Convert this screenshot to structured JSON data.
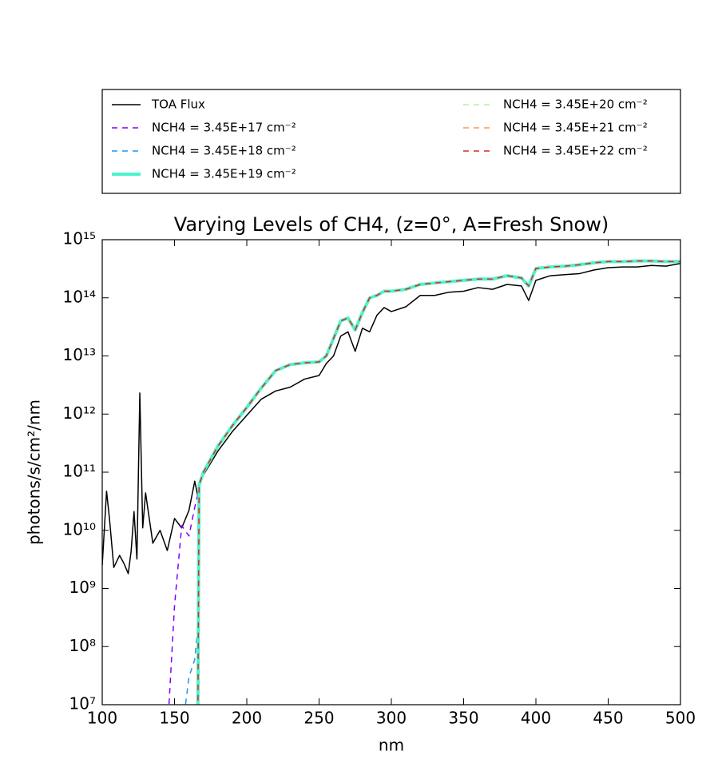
{
  "chart_data": {
    "type": "line",
    "title": "Varying Levels of CH4, (z=0°, A=Fresh Snow)",
    "xlabel": "nm",
    "ylabel": "photons/s/cm²/nm",
    "log_y": true,
    "grid": false,
    "legend": "above",
    "xlim": [
      100,
      500
    ],
    "xticks": [
      100,
      150,
      200,
      250,
      300,
      350,
      400,
      450,
      500
    ],
    "ylim": [
      10000000.0,
      1000000000000000.0
    ],
    "yticks": [
      {
        "value": 10000000.0,
        "label": "10⁷"
      },
      {
        "value": 100000000.0,
        "label": "10⁸"
      },
      {
        "value": 1000000000.0,
        "label": "10⁹"
      },
      {
        "value": 10000000000.0,
        "label": "10¹⁰"
      },
      {
        "value": 100000000000.0,
        "label": "10¹¹"
      },
      {
        "value": 1000000000000.0,
        "label": "10¹²"
      },
      {
        "value": 10000000000000.0,
        "label": "10¹³"
      },
      {
        "value": 100000000000000.0,
        "label": "10¹⁴"
      },
      {
        "value": 1000000000000000.0,
        "label": "10¹⁵"
      }
    ],
    "x": [
      100,
      103,
      105,
      108,
      112,
      115,
      118,
      120,
      122,
      124,
      126,
      128,
      130,
      135,
      140,
      145,
      150,
      155,
      160,
      164,
      166,
      167,
      170,
      180,
      190,
      200,
      210,
      220,
      230,
      240,
      250,
      255,
      260,
      265,
      270,
      275,
      280,
      285,
      290,
      295,
      300,
      310,
      320,
      330,
      340,
      350,
      360,
      370,
      380,
      390,
      395,
      400,
      410,
      420,
      430,
      440,
      450,
      460,
      470,
      480,
      490,
      500
    ],
    "series": [
      {
        "name": "TOA Flux",
        "color": "#000000",
        "dash": false,
        "width": 1.5,
        "values": [
          2500000000.0,
          47000000000.0,
          16000000000.0,
          2300000000.0,
          3700000000.0,
          2700000000.0,
          1800000000.0,
          4400000000.0,
          21000000000.0,
          3200000000.0,
          2300000000000.0,
          11000000000.0,
          44000000000.0,
          6000000000.0,
          10000000000.0,
          4500000000.0,
          16000000000.0,
          11000000000.0,
          22000000000.0,
          70000000000.0,
          40000000000.0,
          60000000000.0,
          90000000000.0,
          230000000000.0,
          500000000000.0,
          950000000000.0,
          1800000000000.0,
          2500000000000.0,
          2900000000000.0,
          4000000000000.0,
          4600000000000.0,
          7400000000000.0,
          10000000000000.0,
          22000000000000.0,
          26000000000000.0,
          12000000000000.0,
          30000000000000.0,
          26000000000000.0,
          50000000000000.0,
          68000000000000.0,
          58000000000000.0,
          70000000000000.0,
          110000000000000.0,
          110000000000000.0,
          125000000000000.0,
          130000000000000.0,
          150000000000000.0,
          140000000000000.0,
          170000000000000.0,
          160000000000000.0,
          90000000000000.0,
          200000000000000.0,
          240000000000000.0,
          250000000000000.0,
          260000000000000.0,
          300000000000000.0,
          330000000000000.0,
          340000000000000.0,
          340000000000000.0,
          360000000000000.0,
          350000000000000.0,
          390000000000000.0
        ]
      },
      {
        "name": "NCH4 = 3.45E+17 cm⁻²",
        "color": "#8000ff",
        "dash": true,
        "width": 1.5,
        "values": [
          null,
          null,
          null,
          null,
          null,
          null,
          null,
          null,
          null,
          null,
          null,
          null,
          null,
          null,
          null,
          3000000.0,
          500000000.0,
          12000000000.0,
          8000000000.0,
          25000000000.0,
          40000000000.0,
          60000000000.0,
          100000000000.0,
          280000000000.0,
          630000000000.0,
          1300000000000.0,
          2800000000000.0,
          5600000000000.0,
          7100000000000.0,
          7600000000000.0,
          7900000000000.0,
          10000000000000.0,
          20000000000000.0,
          40000000000000.0,
          45000000000000.0,
          28000000000000.0,
          56000000000000.0,
          100000000000000.0,
          110000000000000.0,
          130000000000000.0,
          130000000000000.0,
          140000000000000.0,
          170000000000000.0,
          180000000000000.0,
          190000000000000.0,
          200000000000000.0,
          210000000000000.0,
          210000000000000.0,
          240000000000000.0,
          220000000000000.0,
          160000000000000.0,
          320000000000000.0,
          340000000000000.0,
          350000000000000.0,
          370000000000000.0,
          400000000000000.0,
          420000000000000.0,
          420000000000000.0,
          430000000000000.0,
          430000000000000.0,
          420000000000000.0,
          420000000000000.0
        ]
      },
      {
        "name": "NCH4 = 3.45E+18 cm⁻²",
        "color": "#1996f3",
        "dash": true,
        "width": 1.5,
        "values": [
          null,
          null,
          null,
          null,
          null,
          null,
          null,
          null,
          null,
          null,
          null,
          null,
          null,
          null,
          null,
          null,
          null,
          3000000.0,
          30000000.0,
          60000000.0,
          200000000.0,
          60000000000.0,
          100000000000.0,
          280000000000.0,
          630000000000.0,
          1300000000000.0,
          2800000000000.0,
          5600000000000.0,
          7100000000000.0,
          7600000000000.0,
          7900000000000.0,
          10000000000000.0,
          20000000000000.0,
          40000000000000.0,
          45000000000000.0,
          28000000000000.0,
          56000000000000.0,
          100000000000000.0,
          110000000000000.0,
          130000000000000.0,
          130000000000000.0,
          140000000000000.0,
          170000000000000.0,
          180000000000000.0,
          190000000000000.0,
          200000000000000.0,
          210000000000000.0,
          210000000000000.0,
          240000000000000.0,
          220000000000000.0,
          160000000000000.0,
          320000000000000.0,
          340000000000000.0,
          350000000000000.0,
          370000000000000.0,
          400000000000000.0,
          420000000000000.0,
          420000000000000.0,
          430000000000000.0,
          430000000000000.0,
          420000000000000.0,
          420000000000000.0
        ]
      },
      {
        "name": "NCH4 = 3.45E+19 cm⁻²",
        "color": "#4df3ce",
        "dash": false,
        "width": 4,
        "values": [
          null,
          null,
          null,
          null,
          null,
          null,
          null,
          null,
          null,
          null,
          null,
          null,
          null,
          null,
          null,
          null,
          null,
          null,
          null,
          null,
          1000000.0,
          60000000000.0,
          100000000000.0,
          280000000000.0,
          630000000000.0,
          1300000000000.0,
          2800000000000.0,
          5600000000000.0,
          7100000000000.0,
          7600000000000.0,
          7900000000000.0,
          10000000000000.0,
          20000000000000.0,
          40000000000000.0,
          45000000000000.0,
          28000000000000.0,
          56000000000000.0,
          100000000000000.0,
          110000000000000.0,
          130000000000000.0,
          130000000000000.0,
          140000000000000.0,
          170000000000000.0,
          180000000000000.0,
          190000000000000.0,
          200000000000000.0,
          210000000000000.0,
          210000000000000.0,
          240000000000000.0,
          220000000000000.0,
          160000000000000.0,
          320000000000000.0,
          340000000000000.0,
          350000000000000.0,
          370000000000000.0,
          400000000000000.0,
          420000000000000.0,
          420000000000000.0,
          430000000000000.0,
          430000000000000.0,
          420000000000000.0,
          420000000000000.0
        ]
      },
      {
        "name": "NCH4 = 3.45E+20 cm⁻²",
        "color": "#b2f396",
        "dash": true,
        "width": 1.5,
        "values": [
          null,
          null,
          null,
          null,
          null,
          null,
          null,
          null,
          null,
          null,
          null,
          null,
          null,
          null,
          null,
          null,
          null,
          null,
          null,
          null,
          1000000.0,
          60000000000.0,
          100000000000.0,
          280000000000.0,
          630000000000.0,
          1300000000000.0,
          2800000000000.0,
          5600000000000.0,
          7100000000000.0,
          7600000000000.0,
          7900000000000.0,
          10000000000000.0,
          20000000000000.0,
          40000000000000.0,
          45000000000000.0,
          28000000000000.0,
          56000000000000.0,
          100000000000000.0,
          110000000000000.0,
          130000000000000.0,
          130000000000000.0,
          140000000000000.0,
          170000000000000.0,
          180000000000000.0,
          190000000000000.0,
          200000000000000.0,
          210000000000000.0,
          210000000000000.0,
          240000000000000.0,
          220000000000000.0,
          160000000000000.0,
          320000000000000.0,
          340000000000000.0,
          350000000000000.0,
          370000000000000.0,
          400000000000000.0,
          420000000000000.0,
          420000000000000.0,
          430000000000000.0,
          430000000000000.0,
          420000000000000.0,
          420000000000000.0
        ]
      },
      {
        "name": "NCH4 = 3.45E+21 cm⁻²",
        "color": "#ff964f",
        "dash": true,
        "width": 1.5,
        "values": [
          null,
          null,
          null,
          null,
          null,
          null,
          null,
          null,
          null,
          null,
          null,
          null,
          null,
          null,
          null,
          null,
          null,
          null,
          null,
          null,
          1000000.0,
          60000000000.0,
          100000000000.0,
          280000000000.0,
          630000000000.0,
          1300000000000.0,
          2800000000000.0,
          5600000000000.0,
          7100000000000.0,
          7600000000000.0,
          7900000000000.0,
          10000000000000.0,
          20000000000000.0,
          40000000000000.0,
          45000000000000.0,
          28000000000000.0,
          56000000000000.0,
          100000000000000.0,
          110000000000000.0,
          130000000000000.0,
          130000000000000.0,
          140000000000000.0,
          170000000000000.0,
          180000000000000.0,
          190000000000000.0,
          200000000000000.0,
          210000000000000.0,
          210000000000000.0,
          240000000000000.0,
          220000000000000.0,
          160000000000000.0,
          320000000000000.0,
          340000000000000.0,
          350000000000000.0,
          370000000000000.0,
          400000000000000.0,
          420000000000000.0,
          420000000000000.0,
          430000000000000.0,
          430000000000000.0,
          420000000000000.0,
          420000000000000.0
        ]
      },
      {
        "name": "NCH4 = 3.45E+22 cm⁻²",
        "color": "#d03020",
        "dash": true,
        "width": 1.5,
        "values": [
          null,
          null,
          null,
          null,
          null,
          null,
          null,
          null,
          null,
          null,
          null,
          null,
          null,
          null,
          null,
          null,
          null,
          null,
          null,
          null,
          1000000.0,
          60000000000.0,
          100000000000.0,
          280000000000.0,
          630000000000.0,
          1300000000000.0,
          2800000000000.0,
          5600000000000.0,
          7100000000000.0,
          7600000000000.0,
          7900000000000.0,
          10000000000000.0,
          20000000000000.0,
          40000000000000.0,
          45000000000000.0,
          28000000000000.0,
          56000000000000.0,
          100000000000000.0,
          110000000000000.0,
          130000000000000.0,
          130000000000000.0,
          140000000000000.0,
          170000000000000.0,
          180000000000000.0,
          190000000000000.0,
          200000000000000.0,
          210000000000000.0,
          210000000000000.0,
          240000000000000.0,
          220000000000000.0,
          160000000000000.0,
          320000000000000.0,
          340000000000000.0,
          350000000000000.0,
          370000000000000.0,
          400000000000000.0,
          420000000000000.0,
          420000000000000.0,
          430000000000000.0,
          430000000000000.0,
          420000000000000.0,
          420000000000000.0
        ]
      }
    ]
  }
}
